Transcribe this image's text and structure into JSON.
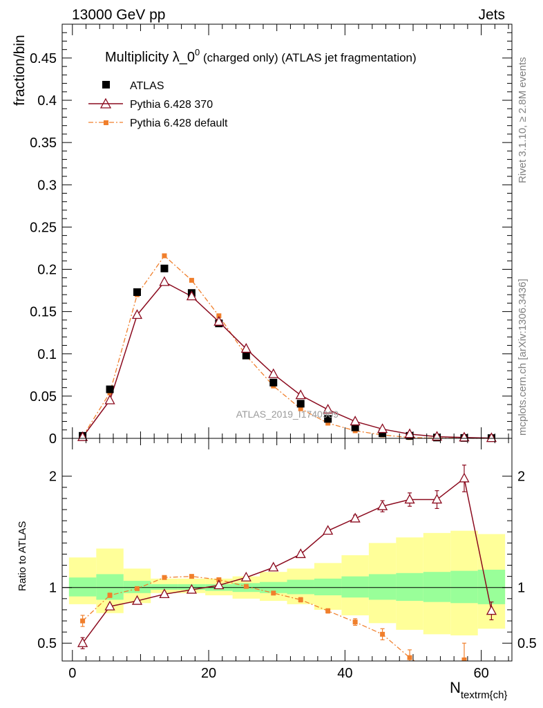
{
  "header": {
    "left": "13000 GeV pp",
    "right": "Jets"
  },
  "title": {
    "main": "Multiplicity λ_0",
    "sup": "0",
    "rest": " (charged only) (ATLAS jet fragmentation)"
  },
  "side_labels": {
    "rivet": "Rivet 3.1.10, ≥ 2.8M events",
    "mcplots": "mcplots.cern.ch [arXiv:1306.3436]"
  },
  "watermark": "ATLAS_2019_I1740909",
  "axes": {
    "top_ylabel": "fraction/bin",
    "bottom_ylabel": "Ratio to ATLAS",
    "xlabel_main": "N",
    "xlabel_sub": "textrm{ch}"
  },
  "legend": [
    {
      "name": "ATLAS",
      "color": "#000000",
      "marker": "square"
    },
    {
      "name": "Pythia 6.428 370",
      "color": "#8b0a1e",
      "marker": "triangle"
    },
    {
      "name": "Pythia 6.428 default",
      "color": "#f07f2c",
      "marker": "small-square"
    }
  ],
  "chart_data": {
    "type": "line",
    "x": [
      1.5,
      5.5,
      9.5,
      13.5,
      17.5,
      21.5,
      25.5,
      29.5,
      33.5,
      37.5,
      41.5,
      45.5,
      49.5,
      53.5,
      57.5,
      61.5
    ],
    "xlim": [
      -1.5,
      64.5
    ],
    "xticks": [
      0,
      20,
      40,
      60
    ],
    "main": {
      "ylim": [
        0,
        0.49
      ],
      "yticks": [
        0,
        0.05,
        0.1,
        0.15,
        0.2,
        0.25,
        0.3,
        0.35,
        0.4,
        0.45
      ],
      "yticklabels": [
        "0",
        "0.05",
        "0.1",
        "0.15",
        "0.2",
        "0.25",
        "0.3",
        "0.35",
        "0.4",
        "0.45"
      ],
      "series": [
        {
          "name": "ATLAS",
          "values": [
            0.003,
            0.058,
            0.173,
            0.201,
            0.172,
            0.136,
            0.098,
            0.066,
            0.041,
            0.023,
            0.013,
            0.006,
            0.003,
            0.001,
            0.0005,
            0.0003
          ]
        },
        {
          "name": "Pythia 6.428 370",
          "values": [
            0.0015,
            0.045,
            0.146,
            0.185,
            0.168,
            0.138,
            0.106,
            0.076,
            0.051,
            0.034,
            0.02,
            0.011,
            0.005,
            0.002,
            0.001,
            0.0003
          ]
        },
        {
          "name": "Pythia 6.428 default",
          "values": [
            0.002,
            0.054,
            0.17,
            0.216,
            0.187,
            0.145,
            0.098,
            0.062,
            0.035,
            0.018,
            0.009,
            0.004,
            0.001,
            0.0003,
            0.0001,
            0.0
          ]
        }
      ]
    },
    "ratio": {
      "ylim": [
        0.34,
        2.34
      ],
      "yticks": [
        0.5,
        1,
        2
      ],
      "yticklabels": [
        "0.5",
        "1",
        "2"
      ],
      "band_inner": [
        [
          0.92,
          1.09
        ],
        [
          0.89,
          1.12
        ],
        [
          0.95,
          1.06
        ],
        [
          0.98,
          1.03
        ],
        [
          0.98,
          1.03
        ],
        [
          0.97,
          1.03
        ],
        [
          0.96,
          1.04
        ],
        [
          0.95,
          1.05
        ],
        [
          0.94,
          1.07
        ],
        [
          0.93,
          1.08
        ],
        [
          0.91,
          1.1
        ],
        [
          0.89,
          1.12
        ],
        [
          0.88,
          1.13
        ],
        [
          0.87,
          1.14
        ],
        [
          0.86,
          1.15
        ],
        [
          0.85,
          1.16
        ]
      ],
      "band_outer": [
        [
          0.85,
          1.27
        ],
        [
          0.77,
          1.35
        ],
        [
          0.86,
          1.17
        ],
        [
          0.95,
          1.08
        ],
        [
          0.95,
          1.08
        ],
        [
          0.93,
          1.08
        ],
        [
          0.9,
          1.1
        ],
        [
          0.88,
          1.14
        ],
        [
          0.85,
          1.17
        ],
        [
          0.8,
          1.22
        ],
        [
          0.75,
          1.29
        ],
        [
          0.68,
          1.4
        ],
        [
          0.62,
          1.45
        ],
        [
          0.58,
          1.49
        ],
        [
          0.57,
          1.51
        ],
        [
          0.63,
          1.48
        ]
      ],
      "series": [
        {
          "name": "Pythia 6.428 370",
          "values": [
            0.5,
            0.83,
            0.88,
            0.94,
            0.98,
            1.02,
            1.09,
            1.18,
            1.3,
            1.51,
            1.62,
            1.73,
            1.79,
            1.79,
            1.98,
            0.79
          ],
          "errors": [
            0.05,
            0.02,
            0.01,
            0.01,
            0.01,
            0.01,
            0.01,
            0.01,
            0.02,
            0.02,
            0.03,
            0.05,
            0.06,
            0.08,
            0.12,
            0.08
          ]
        },
        {
          "name": "Pythia 6.428 default",
          "values": [
            0.7,
            0.93,
            0.99,
            1.09,
            1.1,
            1.07,
            1.01,
            0.95,
            0.89,
            0.79,
            0.69,
            0.58,
            0.37,
            0.2,
            0.35,
            0.0
          ],
          "errors": [
            0.05,
            0.02,
            0.01,
            0.01,
            0.01,
            0.01,
            0.01,
            0.01,
            0.02,
            0.02,
            0.03,
            0.05,
            0.07,
            0.1,
            0.15,
            0.0
          ]
        }
      ]
    }
  }
}
